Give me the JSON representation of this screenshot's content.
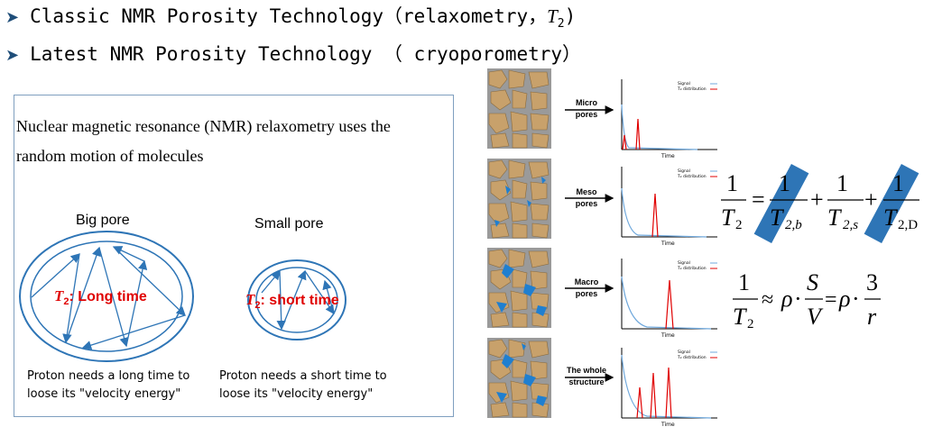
{
  "bullets": [
    {
      "text": "Classic NMR Porosity Technology（relaxometry，",
      "tail": ")"
    },
    {
      "text": "Latest NMR Porosity Technology （ cryoporometry）"
    }
  ],
  "t2_symbol": "T",
  "t2_sub": "2",
  "intro_text": "Nuclear magnetic resonance (NMR) relaxometry uses the random motion of molecules",
  "big_pore": {
    "label": "Big pore",
    "t2_text": ": Long time",
    "desc_line1": "Proton needs a long time to",
    "desc_line2": "loose its \"velocity energy\""
  },
  "small_pore": {
    "label": "Small pore",
    "t2_text": ": short time",
    "desc_line1": "Proton needs a short  time to",
    "desc_line2": "loose its \"velocity energy\""
  },
  "rows": [
    {
      "label_line1": "Micro",
      "label_line2": "pores"
    },
    {
      "label_line1": "Meso",
      "label_line2": "pores"
    },
    {
      "label_line1": "Macro",
      "label_line2": "pores"
    },
    {
      "label_line1": "The whole",
      "label_line2": "structure"
    }
  ],
  "mini_chart": {
    "legend_signal": "Signal",
    "legend_t2": "T₂ distribution",
    "xlabel": "Time"
  },
  "colors": {
    "accent": "#1f4e79",
    "signal": "#6fa8dc",
    "t2dist": "#e00000",
    "ellipse": "#2e75b6",
    "sand": "#c8a16b",
    "pore_blue": "#1f7fd0",
    "stripe": "#2e75b6"
  },
  "formula1": {
    "one": "1",
    "T": "T",
    "sub2": "2",
    "eq": "=",
    "plus": "+",
    "sub_b": "2,b",
    "sub_s": "2,s",
    "sub_D": "2,D"
  },
  "formula2": {
    "one": "1",
    "T": "T",
    "sub2": "2",
    "approx": "≈",
    "rho": "ρ",
    "dot": "·",
    "S": "S",
    "V": "V",
    "eq": "=",
    "three": "3",
    "r": "r"
  }
}
